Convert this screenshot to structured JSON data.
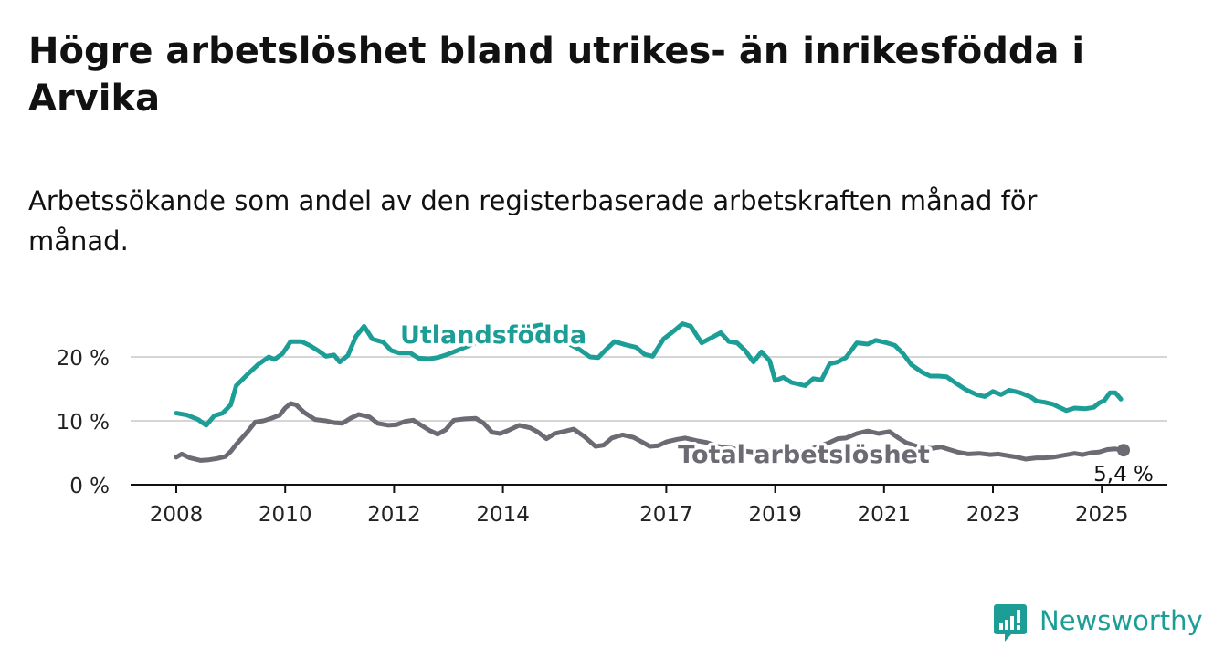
{
  "title": "Högre arbetslöshet bland utrikes- än inrikesfödda i Arvika",
  "subtitle": "Arbetssökande som andel av den registerbaserade arbetskraften månad för månad.",
  "brand": {
    "name": "Newsworthy",
    "icon": "newsworthy-logo-icon",
    "color": "#1c9e97"
  },
  "chart_data": {
    "type": "line",
    "title": "Högre arbetslöshet bland utrikes- än inrikesfödda i Arvika",
    "subtitle": "Arbetssökande som andel av den registerbaserade arbetskraften månad för månad.",
    "xlabel": "",
    "ylabel": "",
    "xlim": [
      2008,
      2025.5
    ],
    "ylim": [
      0,
      20
    ],
    "y_ticks": [
      0,
      10,
      20
    ],
    "y_tick_labels": [
      "0 %",
      "10 %",
      "20 %"
    ],
    "x_ticks": [
      2008,
      2010,
      2012,
      2014,
      2017,
      2019,
      2021,
      2023,
      2025
    ],
    "x_tick_labels": [
      "2008",
      "2010",
      "2012",
      "2014",
      "2017",
      "2019",
      "2021",
      "2023",
      "2025"
    ],
    "grid": "horizontal",
    "end_label": "5,4 %",
    "series": [
      {
        "name": "Utlandsfödda",
        "color": "#1c9e97",
        "points": [
          [
            2008.0,
            11.2
          ],
          [
            2008.2,
            10.9
          ],
          [
            2008.4,
            10.2
          ],
          [
            2008.55,
            9.3
          ],
          [
            2008.7,
            10.8
          ],
          [
            2008.85,
            11.2
          ],
          [
            2009.0,
            12.5
          ],
          [
            2009.1,
            15.5
          ],
          [
            2009.3,
            17.2
          ],
          [
            2009.5,
            18.8
          ],
          [
            2009.7,
            20.0
          ],
          [
            2009.8,
            19.6
          ],
          [
            2009.95,
            20.5
          ],
          [
            2010.1,
            22.4
          ],
          [
            2010.3,
            22.4
          ],
          [
            2010.45,
            21.8
          ],
          [
            2010.6,
            21.0
          ],
          [
            2010.75,
            20.1
          ],
          [
            2010.9,
            20.3
          ],
          [
            2011.0,
            19.2
          ],
          [
            2011.15,
            20.2
          ],
          [
            2011.3,
            23.2
          ],
          [
            2011.45,
            24.8
          ],
          [
            2011.6,
            22.8
          ],
          [
            2011.8,
            22.3
          ],
          [
            2011.95,
            21.0
          ],
          [
            2012.1,
            20.6
          ],
          [
            2012.3,
            20.6
          ],
          [
            2012.45,
            19.8
          ],
          [
            2012.65,
            19.7
          ],
          [
            2012.8,
            19.9
          ],
          [
            2012.95,
            20.3
          ],
          [
            2013.1,
            20.8
          ],
          [
            2013.3,
            21.5
          ],
          [
            2013.5,
            22.2
          ],
          [
            2013.7,
            22.7
          ],
          [
            2013.9,
            22.9
          ],
          [
            2014.1,
            23.3
          ],
          [
            2014.3,
            24.0
          ],
          [
            2014.5,
            24.7
          ],
          [
            2014.7,
            25.0
          ],
          [
            2014.85,
            24.4
          ],
          [
            2015.0,
            23.3
          ],
          [
            2015.2,
            22.1
          ],
          [
            2015.4,
            21.2
          ],
          [
            2015.6,
            20.0
          ],
          [
            2015.75,
            19.9
          ],
          [
            2015.9,
            21.2
          ],
          [
            2016.05,
            22.4
          ],
          [
            2016.25,
            21.9
          ],
          [
            2016.45,
            21.5
          ],
          [
            2016.6,
            20.4
          ],
          [
            2016.75,
            20.1
          ],
          [
            2016.95,
            22.8
          ],
          [
            2017.1,
            23.8
          ],
          [
            2017.3,
            25.2
          ],
          [
            2017.45,
            24.8
          ],
          [
            2017.65,
            22.2
          ],
          [
            2017.85,
            23.1
          ],
          [
            2018.0,
            23.8
          ],
          [
            2018.15,
            22.4
          ],
          [
            2018.3,
            22.2
          ],
          [
            2018.45,
            21.0
          ],
          [
            2018.6,
            19.2
          ],
          [
            2018.75,
            20.8
          ],
          [
            2018.9,
            19.4
          ],
          [
            2019.0,
            16.3
          ],
          [
            2019.15,
            16.8
          ],
          [
            2019.3,
            16.0
          ],
          [
            2019.55,
            15.5
          ],
          [
            2019.7,
            16.6
          ],
          [
            2019.85,
            16.4
          ],
          [
            2020.0,
            18.9
          ],
          [
            2020.15,
            19.2
          ],
          [
            2020.3,
            19.9
          ],
          [
            2020.5,
            22.2
          ],
          [
            2020.7,
            22.0
          ],
          [
            2020.85,
            22.6
          ],
          [
            2021.05,
            22.2
          ],
          [
            2021.2,
            21.8
          ],
          [
            2021.35,
            20.5
          ],
          [
            2021.5,
            18.8
          ],
          [
            2021.7,
            17.6
          ],
          [
            2021.85,
            17.0
          ],
          [
            2022.0,
            17.0
          ],
          [
            2022.15,
            16.9
          ],
          [
            2022.3,
            16.0
          ],
          [
            2022.5,
            14.9
          ],
          [
            2022.7,
            14.1
          ],
          [
            2022.85,
            13.8
          ],
          [
            2023.0,
            14.6
          ],
          [
            2023.15,
            14.1
          ],
          [
            2023.3,
            14.8
          ],
          [
            2023.5,
            14.4
          ],
          [
            2023.7,
            13.7
          ],
          [
            2023.8,
            13.1
          ],
          [
            2023.95,
            12.9
          ],
          [
            2024.1,
            12.6
          ],
          [
            2024.2,
            12.2
          ],
          [
            2024.35,
            11.6
          ],
          [
            2024.5,
            12.0
          ],
          [
            2024.7,
            11.9
          ],
          [
            2024.85,
            12.1
          ],
          [
            2024.95,
            12.8
          ],
          [
            2025.05,
            13.2
          ],
          [
            2025.15,
            14.4
          ],
          [
            2025.25,
            14.4
          ],
          [
            2025.35,
            13.4
          ]
        ]
      },
      {
        "name": "Total arbetslöshet",
        "color": "#6c6a72",
        "points": [
          [
            2008.0,
            4.3
          ],
          [
            2008.1,
            4.8
          ],
          [
            2008.25,
            4.2
          ],
          [
            2008.45,
            3.8
          ],
          [
            2008.6,
            3.9
          ],
          [
            2008.75,
            4.1
          ],
          [
            2008.9,
            4.4
          ],
          [
            2009.0,
            5.2
          ],
          [
            2009.1,
            6.3
          ],
          [
            2009.3,
            8.2
          ],
          [
            2009.45,
            9.8
          ],
          [
            2009.6,
            10.0
          ],
          [
            2009.75,
            10.4
          ],
          [
            2009.9,
            10.9
          ],
          [
            2010.0,
            12.0
          ],
          [
            2010.1,
            12.7
          ],
          [
            2010.2,
            12.5
          ],
          [
            2010.35,
            11.3
          ],
          [
            2010.55,
            10.2
          ],
          [
            2010.75,
            10.0
          ],
          [
            2010.9,
            9.7
          ],
          [
            2011.05,
            9.6
          ],
          [
            2011.2,
            10.4
          ],
          [
            2011.35,
            11.0
          ],
          [
            2011.55,
            10.6
          ],
          [
            2011.7,
            9.6
          ],
          [
            2011.9,
            9.3
          ],
          [
            2012.05,
            9.4
          ],
          [
            2012.2,
            9.9
          ],
          [
            2012.35,
            10.1
          ],
          [
            2012.5,
            9.3
          ],
          [
            2012.65,
            8.5
          ],
          [
            2012.8,
            7.9
          ],
          [
            2012.95,
            8.6
          ],
          [
            2013.1,
            10.1
          ],
          [
            2013.3,
            10.3
          ],
          [
            2013.5,
            10.4
          ],
          [
            2013.65,
            9.6
          ],
          [
            2013.8,
            8.2
          ],
          [
            2013.95,
            8.0
          ],
          [
            2014.1,
            8.5
          ],
          [
            2014.3,
            9.3
          ],
          [
            2014.5,
            8.9
          ],
          [
            2014.65,
            8.2
          ],
          [
            2014.8,
            7.2
          ],
          [
            2014.95,
            8.0
          ],
          [
            2015.1,
            8.3
          ],
          [
            2015.3,
            8.7
          ],
          [
            2015.5,
            7.5
          ],
          [
            2015.7,
            6.0
          ],
          [
            2015.85,
            6.2
          ],
          [
            2016.0,
            7.3
          ],
          [
            2016.2,
            7.8
          ],
          [
            2016.4,
            7.4
          ],
          [
            2016.55,
            6.7
          ],
          [
            2016.7,
            6.0
          ],
          [
            2016.85,
            6.1
          ],
          [
            2017.0,
            6.7
          ],
          [
            2017.2,
            7.1
          ],
          [
            2017.35,
            7.3
          ],
          [
            2017.55,
            6.9
          ],
          [
            2017.75,
            6.6
          ],
          [
            2017.95,
            6.0
          ],
          [
            2018.2,
            5.7
          ],
          [
            2018.4,
            5.3
          ],
          [
            2018.6,
            5.1
          ],
          [
            2018.8,
            5.3
          ],
          [
            2019.0,
            5.4
          ],
          [
            2019.2,
            5.3
          ],
          [
            2019.4,
            5.1
          ],
          [
            2019.6,
            5.4
          ],
          [
            2019.8,
            6.0
          ],
          [
            2020.0,
            6.6
          ],
          [
            2020.15,
            7.2
          ],
          [
            2020.3,
            7.3
          ],
          [
            2020.5,
            8.0
          ],
          [
            2020.7,
            8.4
          ],
          [
            2020.9,
            8.0
          ],
          [
            2021.1,
            8.3
          ],
          [
            2021.25,
            7.4
          ],
          [
            2021.4,
            6.6
          ],
          [
            2021.6,
            6.0
          ],
          [
            2021.75,
            5.7
          ],
          [
            2021.9,
            5.7
          ],
          [
            2022.05,
            5.9
          ],
          [
            2022.2,
            5.5
          ],
          [
            2022.35,
            5.1
          ],
          [
            2022.55,
            4.8
          ],
          [
            2022.75,
            4.9
          ],
          [
            2022.95,
            4.7
          ],
          [
            2023.1,
            4.8
          ],
          [
            2023.3,
            4.5
          ],
          [
            2023.45,
            4.3
          ],
          [
            2023.6,
            4.0
          ],
          [
            2023.8,
            4.2
          ],
          [
            2023.95,
            4.2
          ],
          [
            2024.1,
            4.3
          ],
          [
            2024.3,
            4.6
          ],
          [
            2024.5,
            4.9
          ],
          [
            2024.65,
            4.7
          ],
          [
            2024.8,
            5.0
          ],
          [
            2024.95,
            5.1
          ],
          [
            2025.1,
            5.5
          ],
          [
            2025.25,
            5.6
          ],
          [
            2025.4,
            5.4
          ]
        ]
      }
    ]
  }
}
